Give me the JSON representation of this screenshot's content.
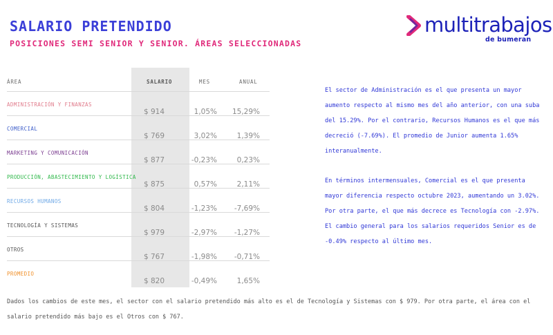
{
  "header": {
    "title": "SALARIO PRETENDIDO",
    "subtitle": "POSICIONES SEMI SENIOR Y SENIOR. ÁREAS SELECCIONADAS"
  },
  "logo": {
    "name": "multitrabajos",
    "tagline": "de bumeran",
    "colors": {
      "primary": "#1d22b8",
      "accent": "#e0297a"
    }
  },
  "table": {
    "headers": {
      "area": "ÁREA",
      "salario": "SALARIO",
      "mes": "MES",
      "anual": "ANUAL"
    },
    "rows": [
      {
        "area": "ADMINISTRACIÓN Y FINANZAS",
        "salario": "$ 914",
        "mes": "1,05%",
        "anual": "15,29%",
        "color": "#e07a8a"
      },
      {
        "area": "COMERCIAL",
        "salario": "$ 769",
        "mes": "3,02%",
        "anual": "1,39%",
        "color": "#3b5bc9"
      },
      {
        "area": "MARKETING Y COMUNICACIÓN",
        "salario": "$ 877",
        "mes": "-0,23%",
        "anual": "0,23%",
        "color": "#7a3b8f"
      },
      {
        "area": "PRODUCCIÓN, ABASTECIMIENTO Y LOGÍSTICA",
        "salario": "$ 875",
        "mes": "0,57%",
        "anual": "2,11%",
        "color": "#2fb84a"
      },
      {
        "area": "RECURSOS HUMANOS",
        "salario": "$ 804",
        "mes": "-1,23%",
        "anual": "-7,69%",
        "color": "#6ea8e6"
      },
      {
        "area": "TECNOLOGÍA Y SISTEMAS",
        "salario": "$ 979",
        "mes": "-2,97%",
        "anual": "-1,27%",
        "color": "#555555"
      },
      {
        "area": "OTROS",
        "salario": "$ 767",
        "mes": "-1,98%",
        "anual": "-0,71%",
        "color": "#555555"
      },
      {
        "area": "PROMEDIO",
        "salario": "$ 820",
        "mes": "-0,49%",
        "anual": "1,65%",
        "color": "#f0902a"
      }
    ]
  },
  "commentary": {
    "paragraph1": "El sector de Administración es el que presenta un mayor aumento respecto al mismo mes del año anterior, con una suba del 15.29%. Por el contrario, Recursos Humanos es el que más decreció (-7.69%). El promedio de Junior aumenta 1.65% interanualmente.",
    "paragraph2": "En términos intermensuales, Comercial es el que presenta mayor diferencia respecto octubre 2023, aumentando un 3.02%. Por otra parte, el que más decrece es Tecnología con -2.97%. El cambio general para los salarios requeridos Senior es de -0.49% respecto al último mes."
  },
  "summary": "Dados los cambios de este mes, el sector con el salario pretendido más alto es el de Tecnología y Sistemas con $ 979. Por otra parte, el área con el salario pretendido más bajo es el Otros con $ 767."
}
